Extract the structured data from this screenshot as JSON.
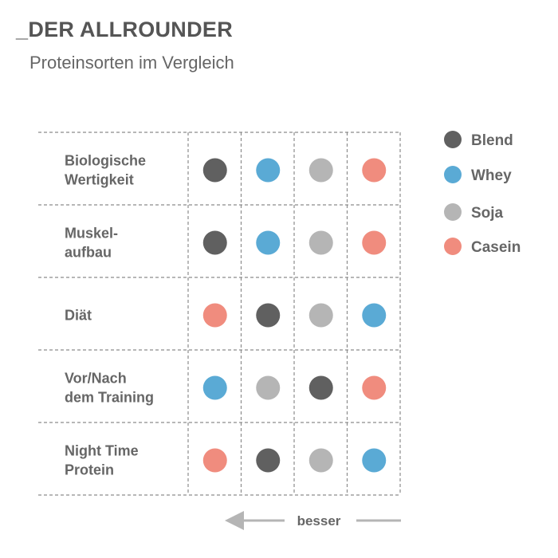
{
  "header": {
    "title": "_DER ALLROUNDER",
    "subtitle": "Proteinsorten im Vergleich"
  },
  "chart_data": {
    "type": "table",
    "series": [
      {
        "name": "Blend",
        "color": "#606060"
      },
      {
        "name": "Whey",
        "color": "#5aaad5"
      },
      {
        "name": "Soja",
        "color": "#b5b5b5"
      },
      {
        "name": "Casein",
        "color": "#f08c7e"
      }
    ],
    "rows": [
      {
        "label": [
          "Biologische",
          "Wertigkeit"
        ],
        "ranking": [
          "Blend",
          "Whey",
          "Soja",
          "Casein"
        ]
      },
      {
        "label": [
          "Muskel-",
          "aufbau"
        ],
        "ranking": [
          "Blend",
          "Whey",
          "Soja",
          "Casein"
        ]
      },
      {
        "label": [
          "Diät"
        ],
        "ranking": [
          "Casein",
          "Blend",
          "Soja",
          "Whey"
        ]
      },
      {
        "label": [
          "Vor/Nach",
          "dem Training"
        ],
        "ranking": [
          "Whey",
          "Soja",
          "Blend",
          "Casein"
        ]
      },
      {
        "label": [
          "Night Time",
          "Protein"
        ],
        "ranking": [
          "Casein",
          "Blend",
          "Soja",
          "Whey"
        ]
      }
    ],
    "legend_position": "right",
    "axis": {
      "label": "besser",
      "direction": "left"
    }
  }
}
